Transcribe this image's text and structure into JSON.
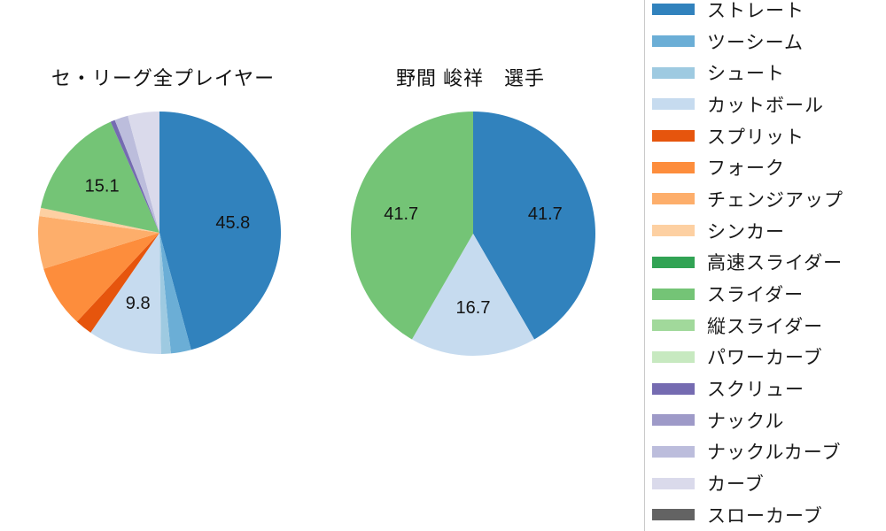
{
  "chart_data": [
    {
      "type": "pie",
      "title": "セ・リーグ全プレイヤー",
      "start_angle_deg": 0,
      "direction": "clockwise",
      "labels_shown_for_large_slices_only": true,
      "slices": [
        {
          "name": "ストレート",
          "value": 45.8,
          "color": "#3182bd",
          "pct_label": "45.8"
        },
        {
          "name": "ツーシーム",
          "value": 2.7,
          "color": "#6baed6",
          "pct_label": null
        },
        {
          "name": "シュート",
          "value": 1.3,
          "color": "#9ecae1",
          "pct_label": null
        },
        {
          "name": "カットボール",
          "value": 9.8,
          "color": "#c6dbef",
          "pct_label": "9.8"
        },
        {
          "name": "スプリット",
          "value": 2.3,
          "color": "#e6550d",
          "pct_label": null
        },
        {
          "name": "フォーク",
          "value": 8.3,
          "color": "#fd8d3c",
          "pct_label": null
        },
        {
          "name": "チェンジアップ",
          "value": 7.0,
          "color": "#fdae6b",
          "pct_label": null
        },
        {
          "name": "シンカー",
          "value": 1.1,
          "color": "#fdd0a2",
          "pct_label": null
        },
        {
          "name": "スライダー",
          "value": 15.1,
          "color": "#74c476",
          "pct_label": "15.1"
        },
        {
          "name": "スクリュー",
          "value": 0.6,
          "color": "#756bb1",
          "pct_label": null
        },
        {
          "name": "ナックルカーブ",
          "value": 1.8,
          "color": "#bcbddc",
          "pct_label": null
        },
        {
          "name": "カーブ",
          "value": 4.2,
          "color": "#dadaeb",
          "pct_label": null
        }
      ]
    },
    {
      "type": "pie",
      "title": "野間 峻祥　選手",
      "start_angle_deg": 0,
      "direction": "clockwise",
      "slices": [
        {
          "name": "ストレート",
          "value": 41.7,
          "color": "#3182bd",
          "pct_label": "41.7"
        },
        {
          "name": "カットボール",
          "value": 16.7,
          "color": "#c6dbef",
          "pct_label": "16.7"
        },
        {
          "name": "スライダー",
          "value": 41.7,
          "color": "#74c476",
          "pct_label": "41.7"
        }
      ]
    }
  ],
  "legend": {
    "position": "right",
    "items": [
      {
        "label": "ストレート",
        "color": "#3182bd"
      },
      {
        "label": "ツーシーム",
        "color": "#6baed6"
      },
      {
        "label": "シュート",
        "color": "#9ecae1"
      },
      {
        "label": "カットボール",
        "color": "#c6dbef"
      },
      {
        "label": "スプリット",
        "color": "#e6550d"
      },
      {
        "label": "フォーク",
        "color": "#fd8d3c"
      },
      {
        "label": "チェンジアップ",
        "color": "#fdae6b"
      },
      {
        "label": "シンカー",
        "color": "#fdd0a2"
      },
      {
        "label": "高速スライダー",
        "color": "#31a354"
      },
      {
        "label": "スライダー",
        "color": "#74c476"
      },
      {
        "label": "縦スライダー",
        "color": "#a1d99b"
      },
      {
        "label": "パワーカーブ",
        "color": "#c7e9c0"
      },
      {
        "label": "スクリュー",
        "color": "#756bb1"
      },
      {
        "label": "ナックル",
        "color": "#9e9ac8"
      },
      {
        "label": "ナックルカーブ",
        "color": "#bcbddc"
      },
      {
        "label": "カーブ",
        "color": "#dadaeb"
      },
      {
        "label": "スローカーブ",
        "color": "#636363"
      }
    ]
  }
}
